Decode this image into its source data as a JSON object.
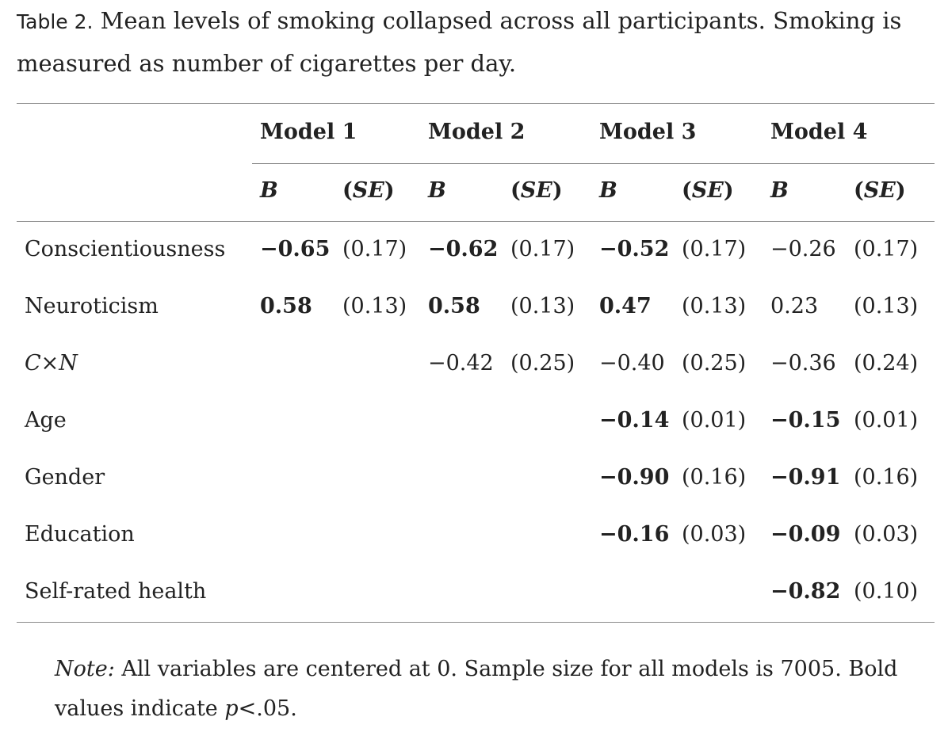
{
  "caption": {
    "lead": "Table 2.",
    "text": " Mean levels of smoking collapsed across all participants. Smoking is measured as number of cigarettes per day."
  },
  "table": {
    "models": [
      "Model 1",
      "Model 2",
      "Model 3",
      "Model 4"
    ],
    "b_label": "B",
    "se_open": "(",
    "se_label": "SE",
    "se_close": ")",
    "rows": [
      {
        "label": "Conscientiousness",
        "label_italic": false,
        "cells": [
          {
            "b": "−0.65",
            "se": "(0.17)",
            "bold": true
          },
          {
            "b": "−0.62",
            "se": "(0.17)",
            "bold": true
          },
          {
            "b": "−0.52",
            "se": "(0.17)",
            "bold": true
          },
          {
            "b": "−0.26",
            "se": "(0.17)",
            "bold": false
          }
        ]
      },
      {
        "label": "Neuroticism",
        "label_italic": false,
        "cells": [
          {
            "b": "0.58",
            "se": "(0.13)",
            "bold": true
          },
          {
            "b": "0.58",
            "se": "(0.13)",
            "bold": true
          },
          {
            "b": "0.47",
            "se": "(0.13)",
            "bold": true
          },
          {
            "b": "0.23",
            "se": "(0.13)",
            "bold": false
          }
        ]
      },
      {
        "label": "C×N",
        "label_italic": true,
        "cells": [
          null,
          {
            "b": "−0.42",
            "se": "(0.25)",
            "bold": false
          },
          {
            "b": "−0.40",
            "se": "(0.25)",
            "bold": false
          },
          {
            "b": "−0.36",
            "se": "(0.24)",
            "bold": false
          }
        ]
      },
      {
        "label": "Age",
        "label_italic": false,
        "cells": [
          null,
          null,
          {
            "b": "−0.14",
            "se": "(0.01)",
            "bold": true
          },
          {
            "b": "−0.15",
            "se": "(0.01)",
            "bold": true
          }
        ]
      },
      {
        "label": "Gender",
        "label_italic": false,
        "cells": [
          null,
          null,
          {
            "b": "−0.90",
            "se": "(0.16)",
            "bold": true
          },
          {
            "b": "−0.91",
            "se": "(0.16)",
            "bold": true
          }
        ]
      },
      {
        "label": "Education",
        "label_italic": false,
        "cells": [
          null,
          null,
          {
            "b": "−0.16",
            "se": "(0.03)",
            "bold": true
          },
          {
            "b": "−0.09",
            "se": "(0.03)",
            "bold": true
          }
        ]
      },
      {
        "label": "Self-rated health",
        "label_italic": false,
        "cells": [
          null,
          null,
          null,
          {
            "b": "−0.82",
            "se": "(0.10)",
            "bold": true
          }
        ]
      }
    ]
  },
  "note": {
    "label": "Note:",
    "text1": " All variables are centered at 0. Sample size for all models is 7005. Bold values indicate ",
    "p": "p",
    "text2": "<.05."
  }
}
